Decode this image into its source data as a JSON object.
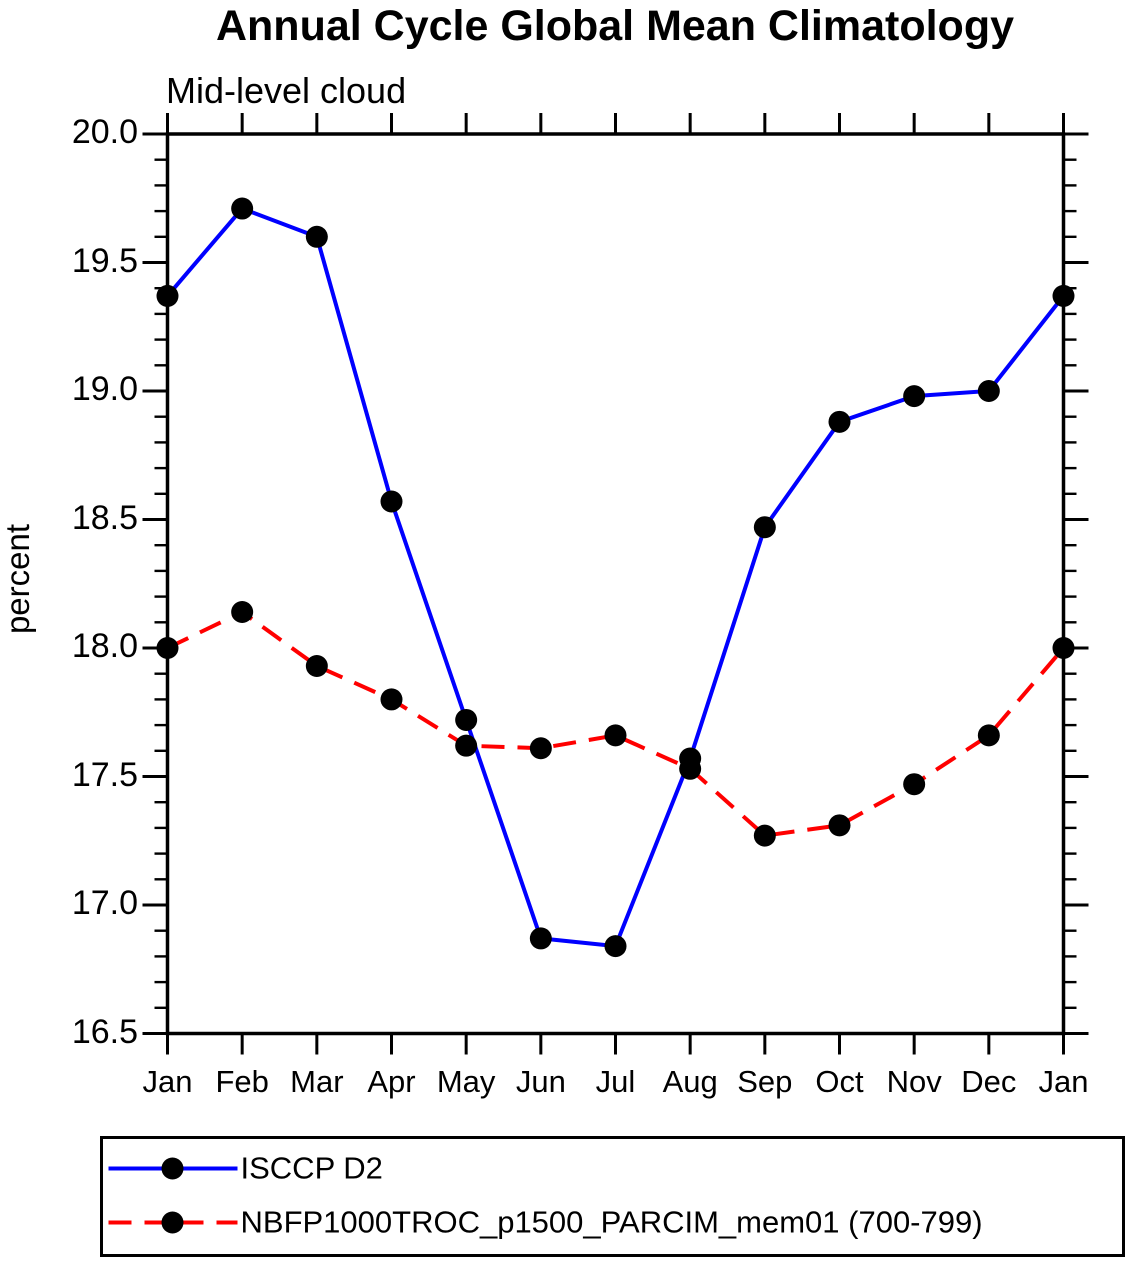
{
  "header": {
    "title": "Annual Cycle Global Mean Climatology",
    "subtitle": "Mid-level cloud"
  },
  "chart_data": {
    "type": "line",
    "title": "Annual Cycle Global Mean Climatology",
    "subtitle": "Mid-level cloud",
    "xlabel": "",
    "ylabel": "percent",
    "units": "percent",
    "categories": [
      "Jan",
      "Feb",
      "Mar",
      "Apr",
      "May",
      "Jun",
      "Jul",
      "Aug",
      "Sep",
      "Oct",
      "Nov",
      "Dec",
      "Jan"
    ],
    "ylim": [
      16.5,
      20.0
    ],
    "ytick_major_interval": 0.5,
    "ytick_minor_interval": 0.1,
    "ytick_labels": [
      "20.0",
      "19.5",
      "19.0",
      "18.5",
      "18.0",
      "17.5",
      "17.0",
      "16.5"
    ],
    "grid": false,
    "legend_position": "bottom-box",
    "axis_color": "#000000",
    "background_color": "#ffffff",
    "series": [
      {
        "name": "ISCCP D2",
        "color": "#0000ff",
        "line_style": "solid",
        "line_width": 4,
        "marker": "filled-circle",
        "marker_color": "#000000",
        "values": [
          19.37,
          19.71,
          19.6,
          18.57,
          17.72,
          16.87,
          16.84,
          17.57,
          18.47,
          18.88,
          18.98,
          19.0,
          19.37
        ]
      },
      {
        "name": "NBFP1000TROC_p1500_PARCIM_mem01 (700-799)",
        "color": "#ff0000",
        "line_style": "dashed",
        "line_width": 4,
        "marker": "filled-circle",
        "marker_color": "#000000",
        "values": [
          18.0,
          18.14,
          17.93,
          17.8,
          17.62,
          17.61,
          17.66,
          17.53,
          17.27,
          17.31,
          17.47,
          17.66,
          18.0
        ]
      }
    ]
  }
}
